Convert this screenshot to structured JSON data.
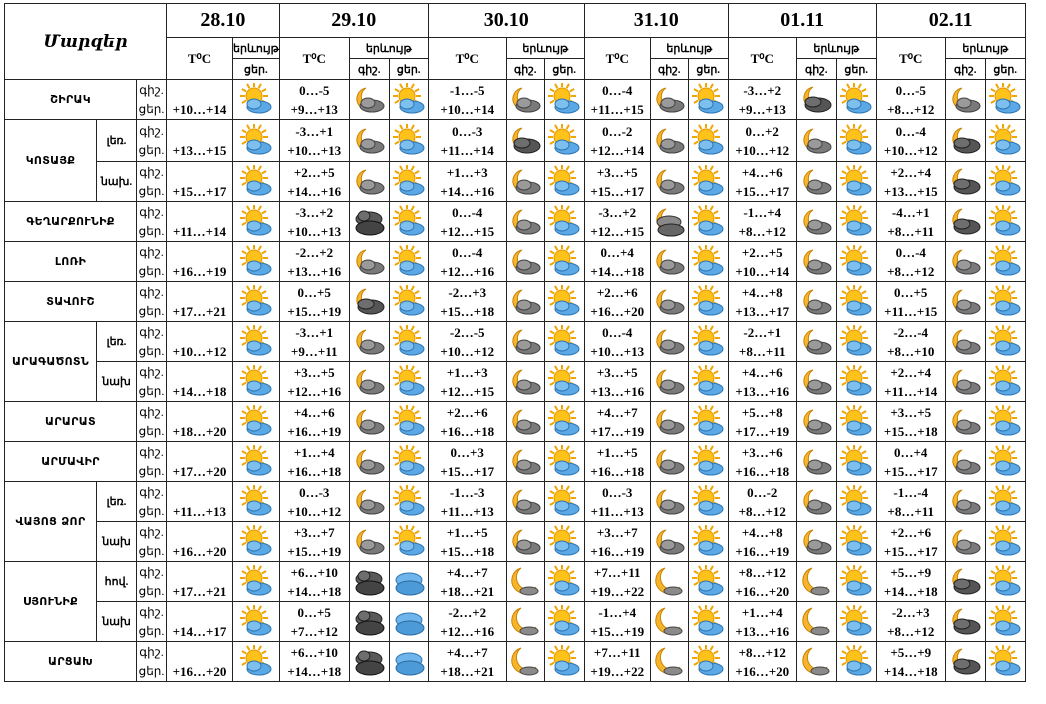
{
  "header": {
    "regions_label": "Մարզեր",
    "t_label": "T⁰C",
    "weather_label": "երևույթ",
    "day_label": "ցեր.",
    "night_label": "գիշ.",
    "dates": [
      "28.10",
      "29.10",
      "30.10",
      "31.10",
      "01.11",
      "02.11"
    ]
  },
  "dn_labels": {
    "night": "գիշ.",
    "day": "ցեր."
  },
  "rows": [
    {
      "region": "ՇԻՐԱԿ",
      "sub": "",
      "first": [
        "+10…+14",
        "sun_cloud"
      ],
      "days": [
        [
          "0…-5",
          "+9…+13",
          "moon_cloud",
          "sun_cloud"
        ],
        [
          "-1…-5",
          "+10…+14",
          "moon_cloud",
          "sun_cloud"
        ],
        [
          "0…-4",
          "+11…+15",
          "moon_cloud",
          "sun_cloud"
        ],
        [
          "-3…+2",
          "+9…+13",
          "moon_dark",
          "sun_cloud"
        ],
        [
          "0…-5",
          "+8…+12",
          "moon_cloud",
          "sun_cloud"
        ]
      ]
    },
    {
      "region": "ԿՈՏԱՅՔ",
      "sub": "լեռ.",
      "first": [
        "+13…+15",
        "sun_cloud"
      ],
      "days": [
        [
          "-3…+1",
          "+10…+13",
          "moon_cloud",
          "sun_cloud"
        ],
        [
          "0…-3",
          "+11…+14",
          "moon_dark",
          "sun_cloud"
        ],
        [
          "0…-2",
          "+12…+14",
          "moon_cloud",
          "sun_cloud"
        ],
        [
          "0…+2",
          "+10…+12",
          "moon_cloud",
          "sun_cloud"
        ],
        [
          "0…-4",
          "+10…+12",
          "moon_dark",
          "sun_cloud"
        ]
      ]
    },
    {
      "region": "",
      "sub": "նախ.",
      "first": [
        "+15…+17",
        "sun_cloud"
      ],
      "days": [
        [
          "+2…+5",
          "+14…+16",
          "moon_cloud",
          "sun_cloud"
        ],
        [
          "+1…+3",
          "+14…+16",
          "moon_cloud",
          "sun_cloud"
        ],
        [
          "+3…+5",
          "+15…+17",
          "moon_cloud",
          "sun_cloud"
        ],
        [
          "+4…+6",
          "+15…+17",
          "moon_cloud",
          "sun_cloud"
        ],
        [
          "+2…+4",
          "+13…+15",
          "moon_dark",
          "sun_cloud"
        ]
      ]
    },
    {
      "region": "ԳԵՂԱՐՔՈՒՆԻՔ",
      "sub": "",
      "first": [
        "+11…+14",
        "sun_cloud"
      ],
      "days": [
        [
          "-3…+2",
          "+10…+13",
          "clouds_dark",
          "sun_cloud"
        ],
        [
          "0…-4",
          "+12…+15",
          "moon_cloud",
          "sun_cloud"
        ],
        [
          "-3…+2",
          "+12…+15",
          "moon_clouds",
          "sun_cloud"
        ],
        [
          "-1…+4",
          "+8…+12",
          "moon_cloud",
          "sun_cloud"
        ],
        [
          "-4…+1",
          "+8…+11",
          "moon_dark",
          "sun_cloud"
        ]
      ]
    },
    {
      "region": "ԼՈՌԻ",
      "sub": "",
      "first": [
        "+16…+19",
        "sun_cloud"
      ],
      "days": [
        [
          "-2…+2",
          "+13…+16",
          "moon_cloud",
          "sun_cloud"
        ],
        [
          "0…-4",
          "+12…+16",
          "moon_cloud",
          "sun_cloud"
        ],
        [
          "0…+4",
          "+14…+18",
          "moon_cloud",
          "sun_cloud"
        ],
        [
          "+2…+5",
          "+10…+14",
          "moon_cloud",
          "sun_cloud"
        ],
        [
          "0…-4",
          "+8…+12",
          "moon_cloud",
          "sun_cloud"
        ]
      ]
    },
    {
      "region": "ՏԱՎՈՒՇ",
      "sub": "",
      "first": [
        "+17…+21",
        "sun_cloud"
      ],
      "days": [
        [
          "0…+5",
          "+15…+19",
          "moon_dark",
          "sun_cloud"
        ],
        [
          "-2…+3",
          "+15…+18",
          "moon_cloud",
          "sun_cloud"
        ],
        [
          "+2…+6",
          "+16…+20",
          "moon_cloud",
          "sun_cloud"
        ],
        [
          "+4…+8",
          "+13…+17",
          "moon_cloud",
          "sun_cloud"
        ],
        [
          "0…+5",
          "+11…+15",
          "moon_cloud",
          "sun_cloud"
        ]
      ]
    },
    {
      "region": "ԱՐԱԳԱԾՈՏՆ",
      "sub": "լեռ.",
      "first": [
        "+10…+12",
        "sun_cloud"
      ],
      "days": [
        [
          "-3…+1",
          "+9…+11",
          "moon_cloud",
          "sun_cloud"
        ],
        [
          "-2…-5",
          "+10…+12",
          "moon_cloud",
          "sun_cloud"
        ],
        [
          "0…-4",
          "+10…+13",
          "moon_cloud",
          "sun_cloud"
        ],
        [
          "-2…+1",
          "+8…+11",
          "moon_cloud",
          "sun_cloud"
        ],
        [
          "-2…-4",
          "+8…+10",
          "moon_cloud",
          "sun_cloud"
        ]
      ]
    },
    {
      "region": "",
      "sub": "նախ",
      "first": [
        "+14…+18",
        "sun_cloud"
      ],
      "days": [
        [
          "+3…+5",
          "+12…+16",
          "moon_cloud",
          "sun_cloud"
        ],
        [
          "+1…+3",
          "+12…+15",
          "moon_cloud",
          "sun_cloud"
        ],
        [
          "+3…+5",
          "+13…+16",
          "moon_cloud",
          "sun_cloud"
        ],
        [
          "+4…+6",
          "+13…+16",
          "moon_cloud",
          "sun_cloud"
        ],
        [
          "+2…+4",
          "+11…+14",
          "moon_cloud",
          "sun_cloud"
        ]
      ]
    },
    {
      "region": "ԱՐԱՐԱՏ",
      "sub": "",
      "first": [
        "+18…+20",
        "sun_cloud"
      ],
      "days": [
        [
          "+4…+6",
          "+16…+19",
          "moon_cloud",
          "sun_cloud"
        ],
        [
          "+2…+6",
          "+16…+18",
          "moon_cloud",
          "sun_cloud"
        ],
        [
          "+4…+7",
          "+17…+19",
          "moon_cloud",
          "sun_cloud"
        ],
        [
          "+5…+8",
          "+17…+19",
          "moon_cloud",
          "sun_cloud"
        ],
        [
          "+3…+5",
          "+15…+18",
          "moon_cloud",
          "sun_cloud"
        ]
      ]
    },
    {
      "region": "ԱՐՄԱՎԻՐ",
      "sub": "",
      "first": [
        "+17…+20",
        "sun_cloud"
      ],
      "days": [
        [
          "+1…+4",
          "+16…+18",
          "moon_cloud",
          "sun_cloud"
        ],
        [
          "0…+3",
          "+15…+17",
          "moon_cloud",
          "sun_cloud"
        ],
        [
          "+1…+5",
          "+16…+18",
          "moon_cloud",
          "sun_cloud"
        ],
        [
          "+3…+6",
          "+16…+18",
          "moon_cloud",
          "sun_cloud"
        ],
        [
          "0…+4",
          "+15…+17",
          "moon_cloud",
          "sun_cloud"
        ]
      ]
    },
    {
      "region": "ՎԱՅՈՑ ՁՈՐ",
      "sub": "լեռ.",
      "first": [
        "+11…+13",
        "sun_cloud"
      ],
      "days": [
        [
          "0…-3",
          "+10…+12",
          "moon_cloud",
          "sun_cloud"
        ],
        [
          "-1…-3",
          "+11…+13",
          "moon_cloud",
          "sun_cloud"
        ],
        [
          "0…-3",
          "+11…+13",
          "moon_cloud",
          "sun_cloud"
        ],
        [
          "0…-2",
          "+8…+12",
          "moon_cloud",
          "sun_cloud"
        ],
        [
          "-1…-4",
          "+8…+11",
          "moon_cloud",
          "sun_cloud"
        ]
      ]
    },
    {
      "region": "",
      "sub": "նախ",
      "first": [
        "+16…+20",
        "sun_cloud"
      ],
      "days": [
        [
          "+3…+7",
          "+15…+19",
          "moon_cloud",
          "sun_cloud"
        ],
        [
          "+1…+5",
          "+15…+18",
          "moon_cloud",
          "sun_cloud"
        ],
        [
          "+3…+7",
          "+16…+19",
          "moon_cloud",
          "sun_cloud"
        ],
        [
          "+4…+8",
          "+16…+19",
          "moon_cloud",
          "sun_cloud"
        ],
        [
          "+2…+6",
          "+15…+17",
          "moon_cloud",
          "sun_cloud"
        ]
      ]
    },
    {
      "region": "ՍՅՈՒՆԻՔ",
      "sub": "հով.",
      "first": [
        "+17…+21",
        "sun_cloud"
      ],
      "days": [
        [
          "+6…+10",
          "+14…+18",
          "clouds_dark",
          "cloud_blue"
        ],
        [
          "+4…+7",
          "+18…+21",
          "moon",
          "sun_cloud"
        ],
        [
          "+7…+11",
          "+19…+22",
          "moon",
          "sun_cloud"
        ],
        [
          "+8…+12",
          "+16…+20",
          "moon",
          "sun_cloud"
        ],
        [
          "+5…+9",
          "+14…+18",
          "moon_dark",
          "sun_cloud"
        ]
      ]
    },
    {
      "region": "",
      "sub": "նախ",
      "first": [
        "+14…+17",
        "sun_cloud"
      ],
      "days": [
        [
          "0…+5",
          "+7…+12",
          "clouds_dark",
          "cloud_blue"
        ],
        [
          "-2…+2",
          "+12…+16",
          "moon",
          "sun_cloud"
        ],
        [
          "-1…+4",
          "+15…+19",
          "moon",
          "sun_cloud"
        ],
        [
          "+1…+4",
          "+13…+16",
          "moon",
          "sun_cloud"
        ],
        [
          "-2…+3",
          "+8…+12",
          "moon_dark",
          "sun_cloud"
        ]
      ]
    },
    {
      "region": "ԱՐՑԱԽ",
      "sub": "",
      "first": [
        "+16…+20",
        "sun_cloud"
      ],
      "days": [
        [
          "+6…+10",
          "+14…+18",
          "clouds_dark",
          "cloud_blue"
        ],
        [
          "+4…+7",
          "+18…+21",
          "moon",
          "sun_cloud"
        ],
        [
          "+7…+11",
          "+19…+22",
          "moon",
          "sun_cloud"
        ],
        [
          "+8…+12",
          "+16…+20",
          "moon",
          "sun_cloud"
        ],
        [
          "+5…+9",
          "+14…+18",
          "moon_dark",
          "sun_cloud"
        ]
      ]
    }
  ]
}
